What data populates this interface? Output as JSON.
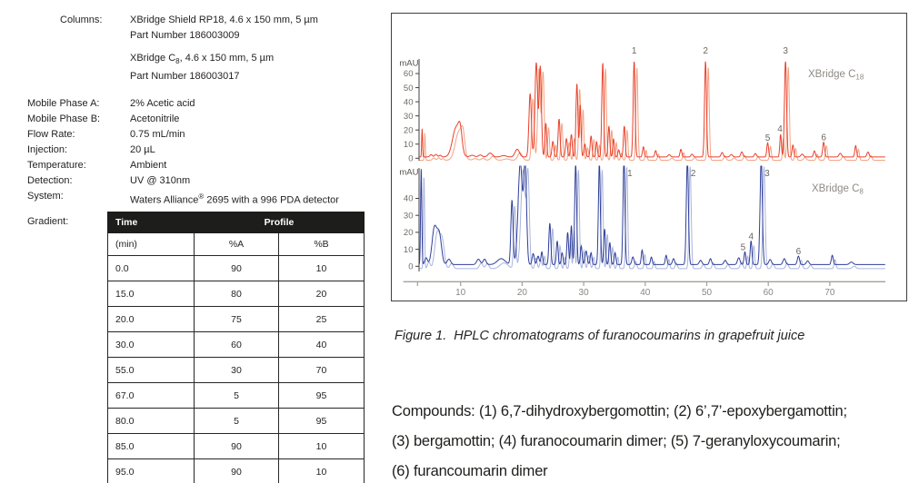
{
  "method": {
    "columns_label": "Columns:",
    "col1_line1": "XBridge Shield RP18, 4.6 x 150 mm, 5 µm",
    "col1_line2": "Part Number 186003009",
    "col2_pre": "XBridge C",
    "col2_sub": "8",
    "col2_post": ", 4.6 x 150 mm, 5 µm",
    "col2_line2": "Part Number 186003017",
    "params": [
      {
        "label": "Mobile Phase A:",
        "value": "2% Acetic acid"
      },
      {
        "label": "Mobile Phase B:",
        "value": "Acetonitrile"
      },
      {
        "label": "Flow Rate:",
        "value": "0.75 mL/min"
      },
      {
        "label": "Injection:",
        "value": "20 µL"
      },
      {
        "label": "Temperature:",
        "value": "Ambient"
      },
      {
        "label": "Detection:",
        "value": "UV @ 310nm"
      }
    ],
    "system_label": "System:",
    "system_pre": "Waters Alliance",
    "system_sup": "®",
    "system_post": " 2695 with a 996 PDA detector",
    "gradient_label": "Gradient:"
  },
  "gradient_table": {
    "col_time": "Time",
    "col_profile": "Profile",
    "sub_min": "(min)",
    "sub_a": "%A",
    "sub_b": "%B",
    "rows": [
      [
        "0.0",
        "90",
        "10"
      ],
      [
        "15.0",
        "80",
        "20"
      ],
      [
        "20.0",
        "75",
        "25"
      ],
      [
        "30.0",
        "60",
        "40"
      ],
      [
        "55.0",
        "30",
        "70"
      ],
      [
        "67.0",
        "5",
        "95"
      ],
      [
        "80.0",
        "5",
        "95"
      ],
      [
        "85.0",
        "90",
        "10"
      ],
      [
        "95.0",
        "90",
        "10"
      ]
    ]
  },
  "figure": {
    "caption": "Figure 1.  HPLC chromatograms of furanocoumarins in grapefruit juice"
  },
  "compounds": {
    "line1": "Compounds: (1) 6,7-dihydroxybergomottin; (2) 6’,7’-epoxybergamottin;",
    "line2": "(3) bergamottin; (4) furanocoumarin dimer; (5) 7-geranyloxycoumarin;",
    "line3": "(6) furancoumarin dimer"
  },
  "chart_data": [
    {
      "type": "line",
      "title": "HPLC chromatogram, XBridge C18 column, furanocoumarins in grapefruit juice",
      "series_label": {
        "pre": "XBridge C",
        "sub": "18"
      },
      "color": "#e8402b",
      "echo_color": "#f5a182",
      "label_color": "#8f8b85",
      "ylabel": "mAU",
      "yticks": [
        0,
        10,
        20,
        30,
        40,
        50,
        60
      ],
      "ylim": [
        -3,
        76
      ],
      "xticks": [
        10,
        20,
        30,
        40,
        50,
        60,
        70
      ],
      "xlim": [
        3.2,
        79
      ],
      "baseline": 0.9,
      "peaks": [
        [
          3.75,
          20,
          0.1
        ],
        [
          5.2,
          1.6,
          0.3
        ],
        [
          6.0,
          1.8,
          0.3
        ],
        [
          6.7,
          1.2,
          0.25
        ],
        [
          9.3,
          21,
          0.85
        ],
        [
          9.95,
          12,
          0.4
        ],
        [
          11.9,
          1.2,
          0.5
        ],
        [
          13.2,
          1.4,
          0.4
        ],
        [
          14.8,
          2.8,
          0.5
        ],
        [
          17.0,
          1.0,
          0.6
        ],
        [
          19.2,
          5.5,
          0.5
        ],
        [
          21.3,
          45,
          0.28
        ],
        [
          22.3,
          67,
          0.3
        ],
        [
          22.95,
          64,
          0.26
        ],
        [
          23.85,
          24,
          0.2
        ],
        [
          25.0,
          11,
          0.22
        ],
        [
          26.0,
          27,
          0.22
        ],
        [
          27.2,
          13,
          0.22
        ],
        [
          28.0,
          16,
          0.2
        ],
        [
          28.9,
          52,
          0.22
        ],
        [
          29.45,
          37,
          0.18
        ],
        [
          30.2,
          9,
          0.22
        ],
        [
          31.2,
          15,
          0.2
        ],
        [
          32.1,
          11,
          0.18
        ],
        [
          33.1,
          67,
          0.22
        ],
        [
          34.1,
          22,
          0.2
        ],
        [
          34.85,
          13,
          0.18
        ],
        [
          35.7,
          5,
          0.2
        ],
        [
          36.6,
          22,
          0.2
        ],
        [
          38.2,
          68,
          0.22
        ],
        [
          39.7,
          7.2,
          0.2
        ],
        [
          41.7,
          4.5,
          0.2
        ],
        [
          43.9,
          1.6,
          0.3
        ],
        [
          45.8,
          5.5,
          0.2
        ],
        [
          47.6,
          2.0,
          0.25
        ],
        [
          49.8,
          68,
          0.22
        ],
        [
          52.5,
          3.2,
          0.25
        ],
        [
          54.0,
          1.7,
          0.3
        ],
        [
          55.7,
          3.6,
          0.25
        ],
        [
          57.9,
          2.5,
          0.25
        ],
        [
          59.9,
          10,
          0.2
        ],
        [
          62.0,
          16,
          0.18
        ],
        [
          62.8,
          68,
          0.24
        ],
        [
          64.0,
          8.5,
          0.2
        ],
        [
          65.5,
          2.0,
          0.3
        ],
        [
          67.5,
          4.3,
          0.22
        ],
        [
          69.0,
          10.5,
          0.22
        ],
        [
          71.7,
          2.6,
          0.3
        ],
        [
          74.2,
          8,
          0.2
        ],
        [
          76.2,
          3.5,
          0.25
        ]
      ],
      "peak_labels": [
        {
          "n": "1",
          "t": 38.2,
          "mau": 73
        },
        {
          "n": "2",
          "t": 49.8,
          "mau": 73
        },
        {
          "n": "3",
          "t": 62.8,
          "mau": 73
        },
        {
          "n": "4",
          "t": 61.9,
          "mau": 17.5
        },
        {
          "n": "5",
          "t": 59.9,
          "mau": 11
        },
        {
          "n": "6",
          "t": 69.0,
          "mau": 11.5
        }
      ]
    },
    {
      "type": "line",
      "title": "HPLC chromatogram, XBridge C8 column, furanocoumarins in grapefruit juice",
      "series_label": {
        "pre": "XBridge C",
        "sub": "8"
      },
      "color": "#2f3e99",
      "echo_color": "#a9b4dc",
      "label_color": "#8f8b85",
      "ylabel": "mAU",
      "yticks": [
        0,
        10,
        20,
        30,
        40
      ],
      "ylim": [
        -4,
        59
      ],
      "xticks": [
        10,
        20,
        30,
        40,
        50,
        60,
        70
      ],
      "xlim": [
        3.2,
        79
      ],
      "baseline": 1.0,
      "peaks": [
        [
          3.6,
          57,
          0.14
        ],
        [
          4.4,
          4,
          0.3
        ],
        [
          5.75,
          21.5,
          0.55
        ],
        [
          6.55,
          17,
          0.5
        ],
        [
          8.1,
          3.2,
          0.4
        ],
        [
          12.9,
          3.2,
          0.4
        ],
        [
          13.9,
          3.2,
          0.35
        ],
        [
          16.6,
          3.5,
          0.9
        ],
        [
          18.35,
          38,
          0.25
        ],
        [
          19.7,
          60,
          0.5
        ],
        [
          20.5,
          56,
          0.32
        ],
        [
          21.8,
          6.5,
          0.25
        ],
        [
          22.6,
          5,
          0.25
        ],
        [
          23.2,
          7.5,
          0.2
        ],
        [
          24.5,
          24.5,
          0.22
        ],
        [
          25.7,
          14,
          0.2
        ],
        [
          26.5,
          7,
          0.2
        ],
        [
          27.4,
          19,
          0.2
        ],
        [
          28.0,
          23,
          0.18
        ],
        [
          28.7,
          60,
          0.22
        ],
        [
          29.6,
          11,
          0.2
        ],
        [
          30.4,
          8,
          0.25
        ],
        [
          31.2,
          7,
          0.2
        ],
        [
          32.55,
          60,
          0.22
        ],
        [
          33.4,
          21,
          0.2
        ],
        [
          34.25,
          13,
          0.2
        ],
        [
          35.1,
          7,
          0.2
        ],
        [
          36.55,
          62,
          0.22
        ],
        [
          38.0,
          4.5,
          0.25
        ],
        [
          39.5,
          8.5,
          0.2
        ],
        [
          41.0,
          4.5,
          0.2
        ],
        [
          43.4,
          5.5,
          0.2
        ],
        [
          44.6,
          3.5,
          0.25
        ],
        [
          46.85,
          62,
          0.24
        ],
        [
          49.0,
          2.5,
          0.3
        ],
        [
          50.6,
          3.5,
          0.25
        ],
        [
          53.0,
          2.5,
          0.3
        ],
        [
          55.2,
          4,
          0.3
        ],
        [
          56.2,
          7.5,
          0.2
        ],
        [
          57.2,
          14,
          0.2
        ],
        [
          58.85,
          62,
          0.26
        ],
        [
          60.3,
          3,
          0.3
        ],
        [
          62.6,
          3.5,
          0.3
        ],
        [
          64.9,
          5,
          0.25
        ],
        [
          66.4,
          2.2,
          0.3
        ],
        [
          70.4,
          5.5,
          0.22
        ],
        [
          73.5,
          1.5,
          0.4
        ]
      ],
      "peak_labels": [
        {
          "n": "1",
          "t": 36.8,
          "mau": 52
        },
        {
          "n": "2",
          "t": 47.1,
          "mau": 52
        },
        {
          "n": "3",
          "t": 59.1,
          "mau": 52
        },
        {
          "n": "4",
          "t": 57.2,
          "mau": 15
        },
        {
          "n": "5",
          "t": 55.9,
          "mau": 8.5
        },
        {
          "n": "6",
          "t": 64.9,
          "mau": 6
        }
      ]
    }
  ]
}
